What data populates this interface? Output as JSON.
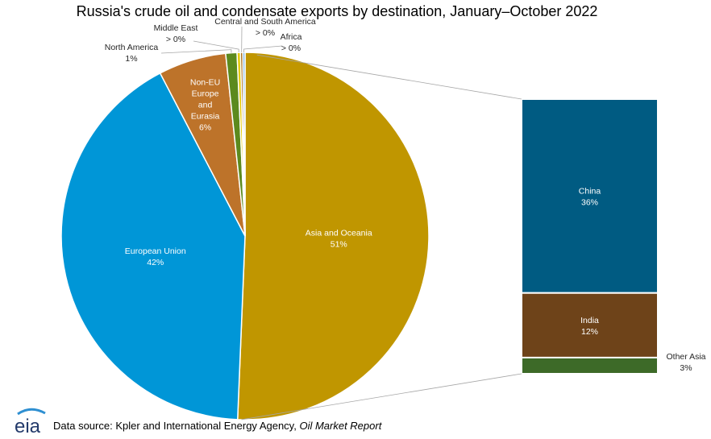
{
  "chart_data": {
    "type": "pie",
    "title": "Russia's crude oil and condensate exports by destination, January–October 2022",
    "slices": [
      {
        "label": "Asia and Oceania",
        "value": 51,
        "value_label": "51%",
        "color": "#c09600"
      },
      {
        "label": "European Union",
        "value": 42,
        "value_label": "42%",
        "color": "#0096d7"
      },
      {
        "label": "Non-EU Europe and Eurasia",
        "value": 6,
        "value_label": "6%",
        "color": "#bd732a"
      },
      {
        "label": "North America",
        "value": 1,
        "value_label": "1%",
        "color": "#5c8a1e"
      },
      {
        "label": "Middle East",
        "value": 0.3,
        "value_label": "> 0%",
        "color": "#e4c900"
      },
      {
        "label": "Central and South America",
        "value": 0.2,
        "value_label": "> 0%",
        "color": "#9d5c00"
      },
      {
        "label": "Africa",
        "value": 0.2,
        "value_label": "> 0%",
        "color": "#7fb7e6"
      }
    ],
    "breakdown_of": "Asia and Oceania",
    "breakdown": [
      {
        "label": "China",
        "value": 36,
        "value_label": "36%",
        "color": "#005b82"
      },
      {
        "label": "India",
        "value": 12,
        "value_label": "12%",
        "color": "#6e4319"
      },
      {
        "label": "Other Asia",
        "value": 3,
        "value_label": "3%",
        "color": "#3d6a28"
      }
    ]
  },
  "footer": {
    "logo_text": "eia",
    "source_prefix": "Data source: Kpler and International Energy Agency, ",
    "source_italic": "Oil Market Report"
  }
}
